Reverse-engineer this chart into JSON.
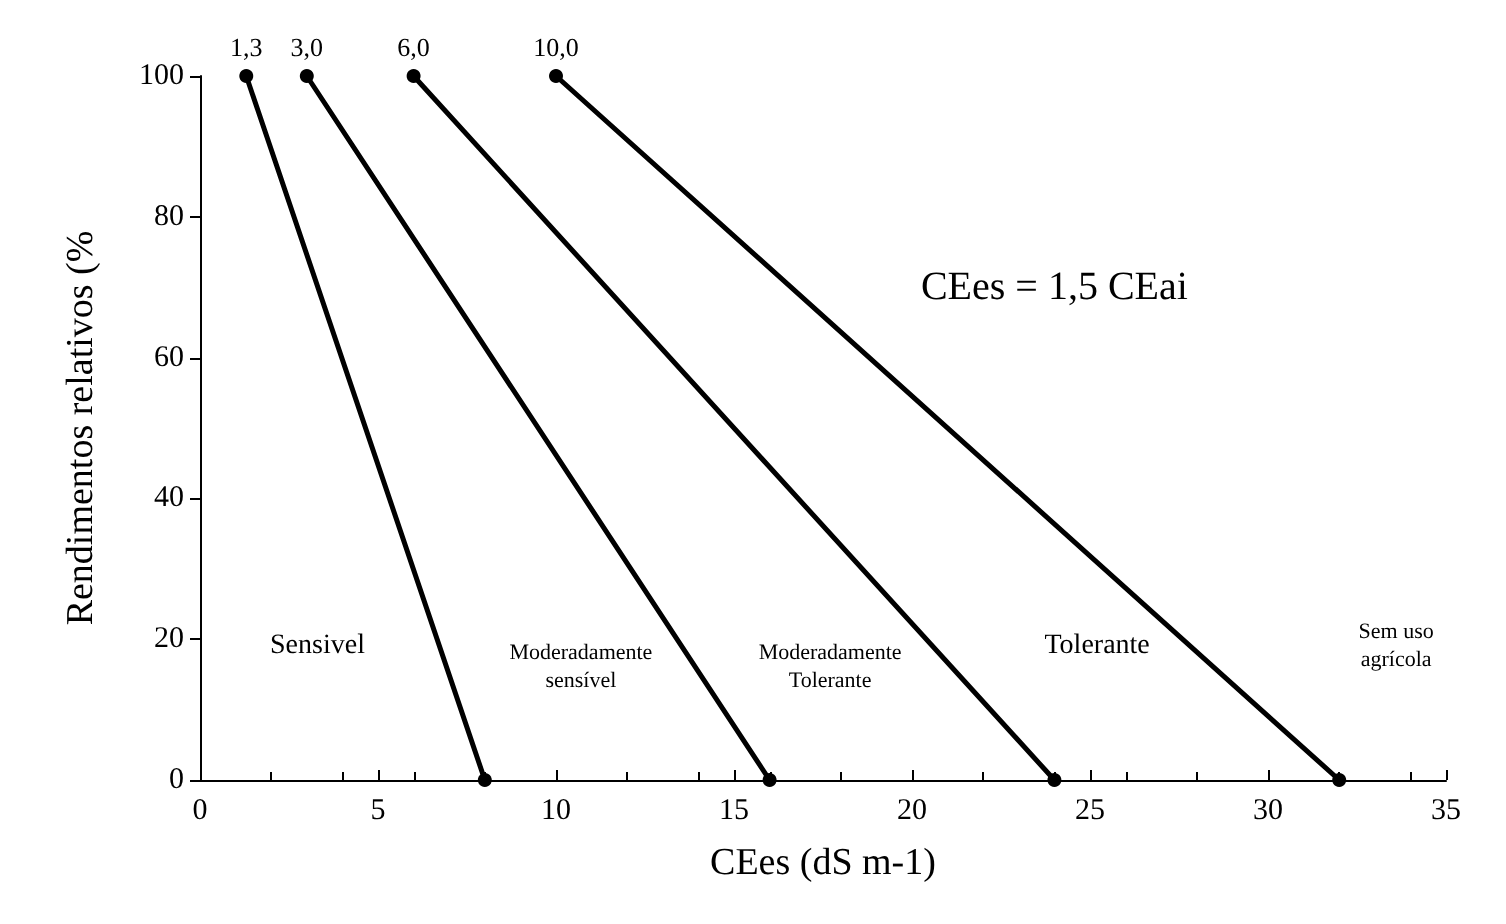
{
  "chart_data": {
    "type": "line",
    "xlabel": "CEes (dS m-1)",
    "ylabel": "Rendimentos relativos (%",
    "series": [
      {
        "color": "#000000",
        "x": [
          1.3,
          8
        ],
        "values": [
          100,
          0
        ]
      },
      {
        "color": "#000000",
        "x": [
          3,
          16
        ],
        "values": [
          100,
          0
        ]
      },
      {
        "color": "#000000",
        "x": [
          6,
          24
        ],
        "values": [
          100,
          0
        ]
      },
      {
        "color": "#000000",
        "x": [
          10,
          32
        ],
        "values": [
          100,
          0
        ]
      }
    ],
    "xlim": [
      0,
      35
    ],
    "xticks": [
      0,
      5,
      10,
      15,
      20,
      25,
      30,
      35
    ],
    "ylim": [
      0,
      100
    ],
    "yticks": [
      0,
      20,
      40,
      60,
      80,
      100
    ],
    "grid": false,
    "marker": "circle",
    "line_style": "solid",
    "annotations": [
      {
        "text": "1,3",
        "x": 1.3,
        "y": 100
      },
      {
        "text": "3,0",
        "x": 3,
        "y": 100
      },
      {
        "text": "6,0",
        "x": 6,
        "y": 100
      },
      {
        "text": "10,0",
        "x": 10,
        "y": 100
      },
      "CEes = 1,5 CEai",
      "Sensivel",
      "Moderadamente\nsensível",
      "Moderadamente\nTolerante",
      "Tolerante",
      "Sem uso\nagrícola"
    ]
  }
}
